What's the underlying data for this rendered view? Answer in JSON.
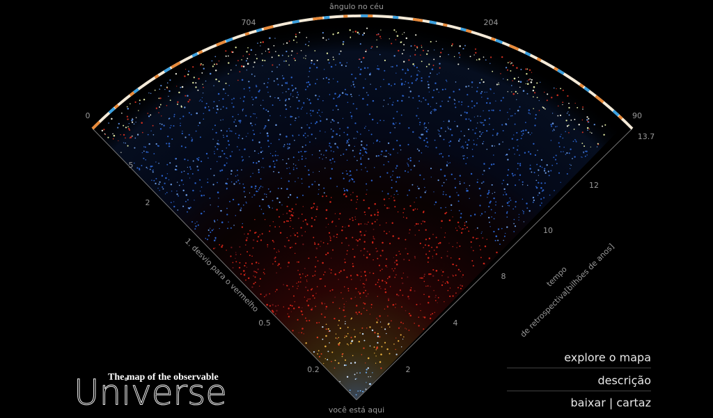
{
  "header": {
    "axis_title": "ângulo no céu",
    "arc_labels": [
      "0",
      "704",
      "204",
      "90"
    ]
  },
  "left_axis": {
    "title": "1. desvio para o vermelho",
    "labels": [
      "5",
      "2",
      "0.5",
      "0.2"
    ]
  },
  "right_axis": {
    "title_lines": [
      "tempo",
      "de retrospectiva[bilhões de anos]"
    ],
    "labels": [
      "13.7",
      "12",
      "10",
      "8",
      "4",
      "2"
    ]
  },
  "origin_label": "você está aqui",
  "logo": {
    "line1": "The map of the observable",
    "line2": "Universe"
  },
  "menu": [
    "explore o mapa",
    "descrição",
    "baixar | cartaz"
  ]
}
